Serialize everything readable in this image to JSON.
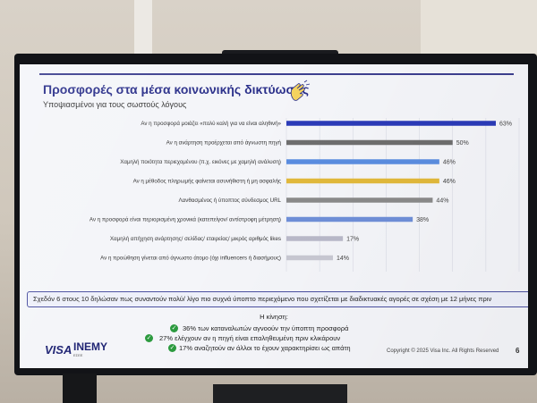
{
  "slide": {
    "title": "Προσφορές στα μέσα κοινωνικής δικτύωσης",
    "subtitle": "Υποψιασμένοι για τους σωστούς λόγους",
    "summary": "Σχεδόν 6 στους 10 δηλώσαν πως συναντούν πολύ/ λίγο πιο συχνά ύποπτο περιεχόμενο που σχετίζεται με διαδικτυακές αγορές σε σχέση με 12 μήνες πριν",
    "trend_title": "Η κίνηση:",
    "trend_items": [
      "36% των καταναλωτών αγνοούν την ύποπτη προσφορά",
      "27% ελέγχουν αν η πηγή είναι επαληθευμένη πριν κλικάρουν",
      "17% αναζητούν αν άλλοι το έχουν χαρακτηρίσει ως απάτη"
    ],
    "logos": {
      "visa": "VISA",
      "inemy": "INEMY",
      "inemy_sub": "ΕΣΕΕ"
    },
    "copyright": "Copyright © 2025 Visa Inc. All Rights Reserved",
    "page_number": "6",
    "decor_icon": "waving-hand-icon"
  },
  "chart_data": {
    "type": "bar",
    "orientation": "horizontal",
    "categories": [
      "Αν η προσφορά μοιάζει «πολύ καλή για να είναι αληθινή»",
      "Αν η ανάρτηση προέρχεται από άγνωστη πηγή",
      "Χαμηλή ποιότητα περιεχομένου (π.χ. εικόνες με χαμηλή ανάλυση)",
      "Αν η μέθοδος πληρωμής φαίνεται ασυνήθιστη ή μη ασφαλής",
      "Λανθασμένος ή ύποπτος σύνδεσμος URL",
      "Αν η προσφορά είναι περιορισμένη χρονικά (κατεπείγον/ αντίστροφη μέτρηση)",
      "Χαμηλή απήχηση ανάρτησης/ σελίδας/ εταιρείας/ μικρός αριθμός likes",
      "Αν η προώθηση γίνεται από άγνωστο άτομο (όχι influencers ή διασήμους)"
    ],
    "values": [
      63,
      50,
      46,
      46,
      44,
      38,
      17,
      14
    ],
    "value_labels": [
      "63%",
      "50%",
      "46%",
      "46%",
      "44%",
      "38%",
      "17%",
      "14%"
    ],
    "colors": [
      "#2b3bb8",
      "#6e6e6e",
      "#5a8de0",
      "#e2b93b",
      "#8a8a8a",
      "#6f8fd8",
      "#b9b9c9",
      "#c8c8d2"
    ],
    "xlim": [
      0,
      70
    ],
    "grid": true
  }
}
